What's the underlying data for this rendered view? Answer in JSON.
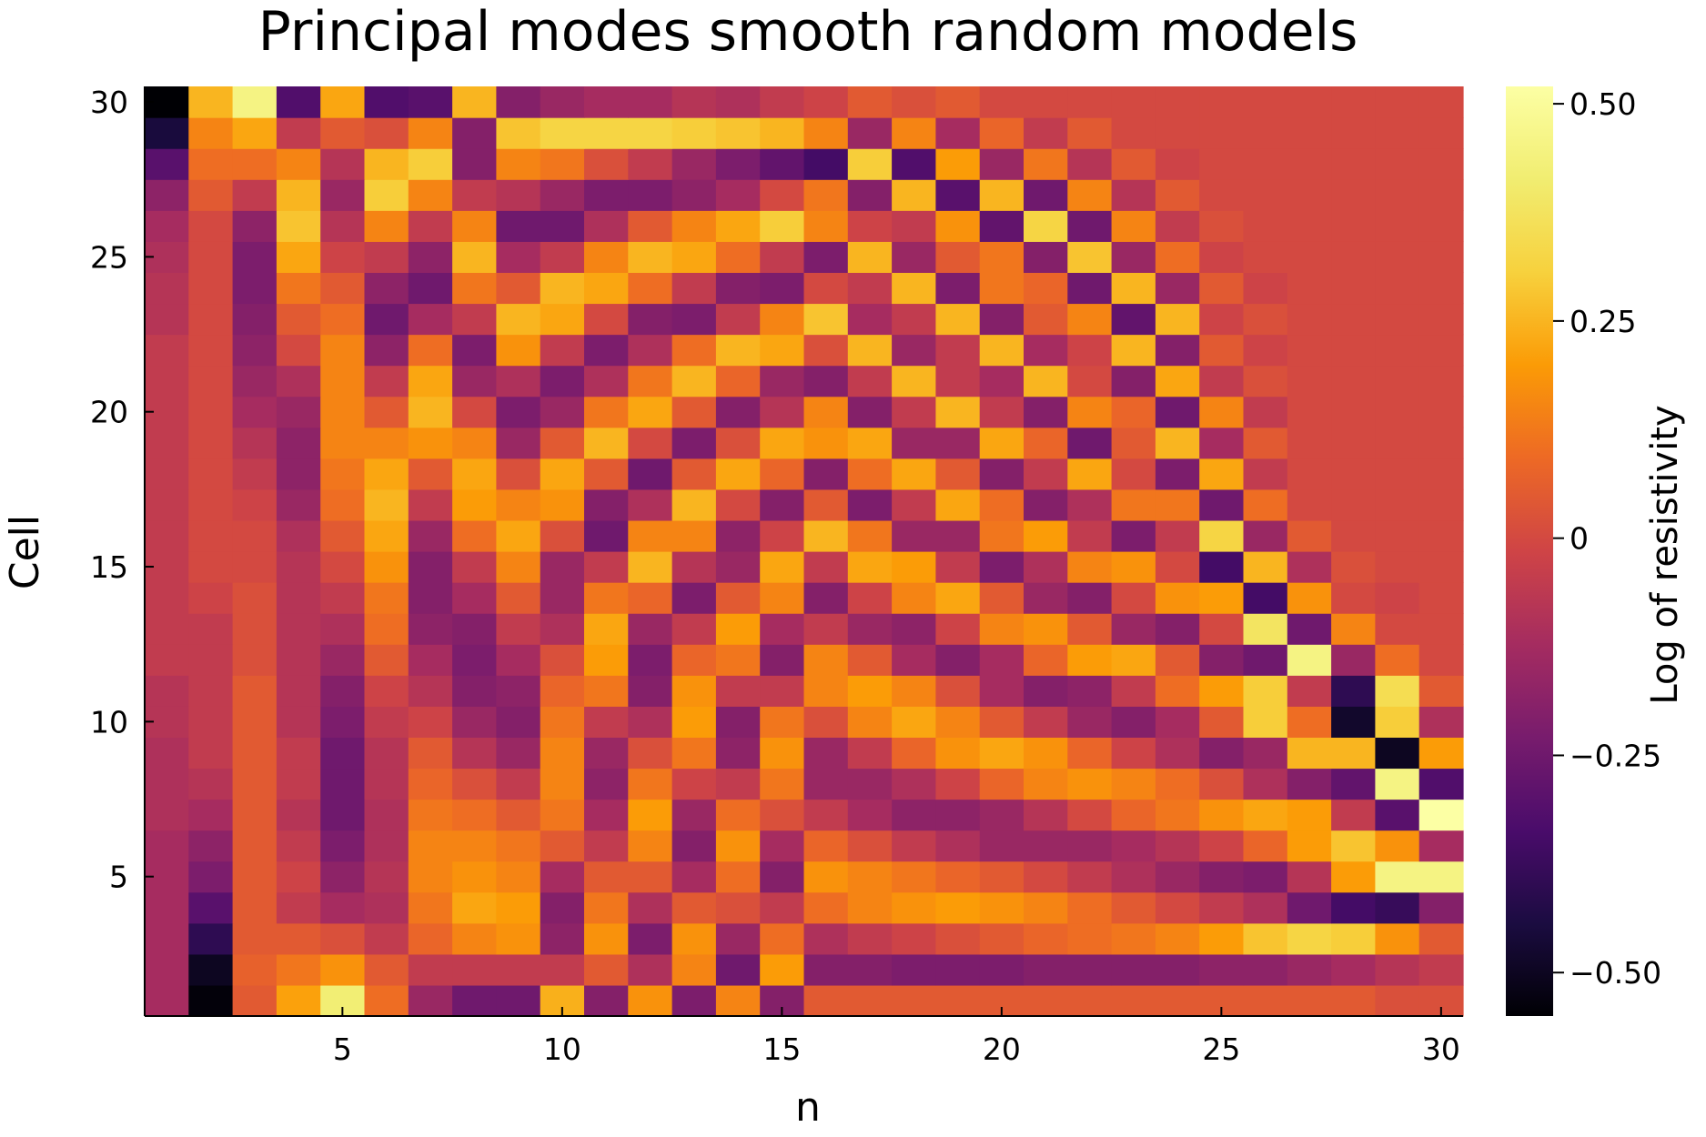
{
  "chart_data": {
    "type": "heatmap",
    "title": "Principal modes smooth random models",
    "xlabel": "n",
    "ylabel": "Cell",
    "colorbar_label": "Log of resistivity",
    "colormap": "inferno",
    "clim": [
      -0.55,
      0.52
    ],
    "xlim": [
      0.5,
      30.5
    ],
    "ylim": [
      0.5,
      30.5
    ],
    "x_ticks": [
      5,
      10,
      15,
      20,
      25,
      30
    ],
    "y_ticks": [
      5,
      10,
      15,
      20,
      25,
      30
    ],
    "colorbar_ticks": [
      {
        "value": 0.5,
        "label": "0.50"
      },
      {
        "value": 0.25,
        "label": "0.25"
      },
      {
        "value": 0.0,
        "label": "0"
      },
      {
        "value": -0.25,
        "label": "−0.25"
      },
      {
        "value": -0.5,
        "label": "−0.50"
      }
    ],
    "rows": 30,
    "cols": 30,
    "z_note": "Principal modes: column n is the n-th mode evaluated over 30 cells (row 1 at bottom).",
    "z": [
      [
        -0.12,
        -0.54,
        0.05,
        0.21,
        0.42,
        0.1,
        -0.15,
        -0.25,
        -0.25,
        0.24,
        -0.2,
        0.18,
        -0.22,
        0.15,
        -0.2,
        0.05,
        0.05,
        0.05,
        0.05,
        0.05,
        0.05,
        0.05,
        0.05,
        0.05,
        0.05,
        0.05,
        0.05,
        0.05,
        0.02,
        0.02
      ],
      [
        -0.12,
        -0.5,
        0.07,
        0.12,
        0.18,
        0.05,
        -0.05,
        -0.05,
        -0.05,
        -0.05,
        0.05,
        -0.1,
        0.15,
        -0.25,
        0.2,
        -0.2,
        -0.2,
        -0.22,
        -0.22,
        -0.22,
        -0.2,
        -0.2,
        -0.2,
        -0.2,
        -0.18,
        -0.18,
        -0.15,
        -0.12,
        -0.08,
        -0.05
      ],
      [
        -0.12,
        -0.4,
        0.05,
        0.05,
        0.02,
        -0.05,
        0.08,
        0.15,
        0.18,
        -0.18,
        0.18,
        -0.22,
        0.18,
        -0.15,
        0.1,
        -0.1,
        -0.05,
        -0.02,
        0.02,
        0.05,
        0.08,
        0.1,
        0.12,
        0.15,
        0.2,
        0.28,
        0.32,
        0.3,
        0.18,
        0.05
      ],
      [
        -0.12,
        -0.3,
        0.05,
        -0.05,
        -0.12,
        -0.1,
        0.12,
        0.22,
        0.2,
        -0.2,
        0.12,
        -0.1,
        0.05,
        0.02,
        -0.05,
        0.1,
        0.15,
        0.18,
        0.2,
        0.18,
        0.15,
        0.1,
        0.05,
        0.0,
        -0.05,
        -0.1,
        -0.25,
        -0.35,
        -0.38,
        -0.2
      ],
      [
        -0.12,
        -0.22,
        0.05,
        -0.02,
        -0.18,
        -0.08,
        0.15,
        0.18,
        0.15,
        -0.12,
        0.05,
        0.05,
        -0.12,
        0.1,
        -0.2,
        0.18,
        0.15,
        0.12,
        0.08,
        0.05,
        0.0,
        -0.05,
        -0.1,
        -0.15,
        -0.2,
        -0.22,
        -0.08,
        0.2,
        0.45,
        0.45
      ],
      [
        -0.12,
        -0.18,
        0.05,
        -0.05,
        -0.22,
        -0.1,
        0.15,
        0.15,
        0.12,
        0.05,
        -0.05,
        0.15,
        -0.2,
        0.18,
        -0.12,
        0.08,
        0.02,
        -0.05,
        -0.1,
        -0.15,
        -0.15,
        -0.15,
        -0.12,
        -0.08,
        -0.02,
        0.08,
        0.2,
        0.28,
        0.18,
        -0.12
      ],
      [
        -0.1,
        -0.12,
        0.05,
        -0.08,
        -0.25,
        -0.1,
        0.12,
        0.1,
        0.05,
        0.12,
        -0.12,
        0.2,
        -0.15,
        0.1,
        0.02,
        -0.05,
        -0.12,
        -0.18,
        -0.18,
        -0.15,
        -0.08,
        0.0,
        0.08,
        0.12,
        0.18,
        0.22,
        0.2,
        -0.05,
        -0.3,
        0.52
      ],
      [
        -0.1,
        -0.08,
        0.05,
        -0.05,
        -0.25,
        -0.08,
        0.08,
        0.02,
        -0.05,
        0.15,
        -0.18,
        0.12,
        -0.02,
        -0.05,
        0.12,
        -0.15,
        -0.15,
        -0.1,
        -0.02,
        0.08,
        0.15,
        0.18,
        0.15,
        0.1,
        0.02,
        -0.1,
        -0.2,
        -0.28,
        0.45,
        -0.32
      ],
      [
        -0.1,
        -0.05,
        0.05,
        -0.05,
        -0.25,
        -0.08,
        0.05,
        -0.08,
        -0.15,
        0.15,
        -0.15,
        0.02,
        0.12,
        -0.18,
        0.18,
        -0.15,
        -0.05,
        0.08,
        0.18,
        0.22,
        0.18,
        0.08,
        -0.02,
        -0.1,
        -0.2,
        -0.15,
        0.25,
        0.25,
        -0.5,
        0.2
      ],
      [
        -0.08,
        -0.05,
        0.05,
        -0.08,
        -0.22,
        -0.05,
        -0.02,
        -0.15,
        -0.2,
        0.12,
        -0.05,
        -0.1,
        0.2,
        -0.2,
        0.12,
        0.02,
        0.15,
        0.22,
        0.15,
        0.05,
        -0.05,
        -0.15,
        -0.2,
        -0.12,
        0.05,
        0.3,
        0.1,
        -0.48,
        0.3,
        -0.1
      ],
      [
        -0.08,
        -0.05,
        0.05,
        -0.08,
        -0.2,
        -0.02,
        -0.08,
        -0.2,
        -0.18,
        0.08,
        0.12,
        -0.2,
        0.18,
        -0.05,
        -0.05,
        0.15,
        0.2,
        0.15,
        0.02,
        -0.12,
        -0.2,
        -0.18,
        -0.05,
        0.1,
        0.2,
        0.3,
        -0.05,
        -0.4,
        0.35,
        0.05
      ],
      [
        -0.05,
        -0.05,
        0.02,
        -0.08,
        -0.15,
        0.05,
        -0.12,
        -0.22,
        -0.12,
        0.02,
        0.2,
        -0.22,
        0.08,
        0.12,
        -0.2,
        0.15,
        0.05,
        -0.12,
        -0.2,
        -0.12,
        0.08,
        0.2,
        0.22,
        0.05,
        -0.2,
        -0.25,
        0.45,
        -0.15,
        0.1,
        0.0
      ],
      [
        -0.05,
        -0.05,
        0.02,
        -0.08,
        -0.1,
        0.1,
        -0.18,
        -0.2,
        -0.05,
        -0.1,
        0.22,
        -0.15,
        -0.05,
        0.2,
        -0.12,
        -0.05,
        -0.15,
        -0.18,
        -0.02,
        0.15,
        0.18,
        0.05,
        -0.15,
        -0.2,
        0.0,
        0.38,
        -0.25,
        0.15,
        0.0,
        0.0
      ],
      [
        -0.05,
        -0.02,
        0.02,
        -0.08,
        -0.05,
        0.12,
        -0.2,
        -0.12,
        0.05,
        -0.15,
        0.12,
        0.08,
        -0.22,
        0.05,
        0.15,
        -0.2,
        -0.02,
        0.15,
        0.22,
        0.05,
        -0.15,
        -0.2,
        0.0,
        0.18,
        0.2,
        -0.35,
        0.18,
        0.0,
        -0.02,
        0.0
      ],
      [
        -0.05,
        0.0,
        0.0,
        -0.08,
        0.0,
        0.18,
        -0.2,
        -0.05,
        0.15,
        -0.15,
        -0.05,
        0.25,
        -0.08,
        -0.15,
        0.22,
        -0.05,
        0.22,
        0.2,
        -0.05,
        -0.22,
        -0.1,
        0.15,
        0.18,
        0.0,
        -0.35,
        0.25,
        -0.1,
        0.02,
        0.0,
        0.0
      ],
      [
        -0.05,
        0.0,
        0.0,
        -0.1,
        0.05,
        0.22,
        -0.15,
        0.1,
        0.22,
        0.02,
        -0.25,
        0.15,
        0.15,
        -0.18,
        -0.02,
        0.25,
        0.12,
        -0.15,
        -0.15,
        0.12,
        0.2,
        -0.05,
        -0.22,
        -0.05,
        0.32,
        -0.15,
        0.05,
        0.0,
        0.0,
        0.0
      ],
      [
        -0.05,
        0.0,
        -0.02,
        -0.15,
        0.1,
        0.25,
        -0.05,
        0.2,
        0.15,
        0.18,
        -0.2,
        -0.1,
        0.25,
        0.0,
        -0.2,
        0.05,
        -0.22,
        -0.05,
        0.22,
        0.1,
        -0.2,
        -0.1,
        0.12,
        0.12,
        -0.25,
        0.1,
        0.0,
        0.0,
        0.0,
        0.0
      ],
      [
        -0.05,
        0.0,
        -0.05,
        -0.18,
        0.12,
        0.22,
        0.05,
        0.22,
        0.02,
        0.22,
        0.05,
        -0.25,
        0.05,
        0.22,
        0.08,
        -0.2,
        0.1,
        0.22,
        0.05,
        -0.2,
        -0.05,
        0.22,
        0.0,
        -0.22,
        0.22,
        -0.05,
        0.0,
        0.0,
        0.0,
        0.0
      ],
      [
        -0.05,
        0.0,
        -0.08,
        -0.18,
        0.15,
        0.15,
        0.18,
        0.15,
        -0.15,
        0.05,
        0.25,
        0.0,
        -0.22,
        0.02,
        0.22,
        0.18,
        0.22,
        -0.15,
        -0.15,
        0.22,
        0.08,
        -0.25,
        0.05,
        0.25,
        -0.12,
        0.05,
        0.0,
        0.0,
        0.0,
        0.0
      ],
      [
        -0.05,
        0.0,
        -0.12,
        -0.15,
        0.15,
        0.05,
        0.25,
        0.0,
        -0.22,
        -0.15,
        0.12,
        0.22,
        0.05,
        -0.2,
        -0.08,
        0.15,
        -0.2,
        -0.05,
        0.25,
        -0.05,
        -0.2,
        0.15,
        0.08,
        -0.25,
        0.15,
        -0.05,
        0.0,
        0.0,
        0.0,
        0.0
      ],
      [
        -0.05,
        0.0,
        -0.15,
        -0.1,
        0.15,
        -0.05,
        0.22,
        -0.15,
        -0.1,
        -0.22,
        -0.1,
        0.12,
        0.25,
        0.08,
        -0.15,
        -0.2,
        -0.05,
        0.25,
        -0.05,
        -0.12,
        0.25,
        0.0,
        -0.2,
        0.22,
        -0.05,
        0.02,
        0.0,
        0.0,
        0.0,
        0.0
      ],
      [
        -0.05,
        0.0,
        -0.18,
        0.0,
        0.15,
        -0.18,
        0.1,
        -0.22,
        0.18,
        -0.05,
        -0.22,
        -0.1,
        0.1,
        0.25,
        0.22,
        0.02,
        0.25,
        -0.15,
        -0.05,
        0.25,
        -0.12,
        -0.02,
        0.25,
        -0.2,
        0.05,
        -0.02,
        0.0,
        0.0,
        0.0,
        0.0
      ],
      [
        -0.08,
        0.0,
        -0.2,
        0.05,
        0.1,
        -0.25,
        -0.12,
        -0.05,
        0.25,
        0.22,
        0.0,
        -0.2,
        -0.22,
        -0.05,
        0.15,
        0.28,
        -0.12,
        -0.05,
        0.25,
        -0.2,
        0.05,
        0.15,
        -0.28,
        0.25,
        -0.02,
        0.02,
        0.0,
        0.0,
        0.0,
        0.0
      ],
      [
        -0.08,
        0.0,
        -0.22,
        0.12,
        0.05,
        -0.18,
        -0.25,
        0.12,
        0.05,
        0.25,
        0.22,
        0.1,
        -0.05,
        -0.2,
        -0.22,
        0.0,
        -0.05,
        0.25,
        -0.22,
        0.12,
        0.08,
        -0.25,
        0.25,
        -0.15,
        0.05,
        -0.02,
        0.0,
        0.0,
        0.0,
        0.0
      ],
      [
        -0.1,
        0.0,
        -0.22,
        0.22,
        -0.02,
        -0.05,
        -0.18,
        0.25,
        -0.12,
        -0.05,
        0.15,
        0.25,
        0.22,
        0.1,
        -0.05,
        -0.22,
        0.25,
        -0.15,
        0.05,
        0.12,
        -0.2,
        0.28,
        -0.15,
        0.1,
        -0.02,
        0.0,
        0.0,
        0.0,
        0.0,
        0.0
      ],
      [
        -0.12,
        0.0,
        -0.18,
        0.28,
        -0.08,
        0.15,
        -0.05,
        0.15,
        -0.25,
        -0.25,
        -0.1,
        0.05,
        0.15,
        0.22,
        0.3,
        0.15,
        -0.02,
        -0.05,
        0.18,
        -0.28,
        0.32,
        -0.25,
        0.15,
        -0.05,
        0.02,
        0.0,
        0.0,
        0.0,
        0.0,
        0.0
      ],
      [
        -0.18,
        0.05,
        -0.05,
        0.25,
        -0.15,
        0.3,
        0.15,
        -0.05,
        -0.08,
        -0.15,
        -0.22,
        -0.22,
        -0.18,
        -0.12,
        0.0,
        0.12,
        -0.2,
        0.25,
        -0.3,
        0.25,
        -0.25,
        0.15,
        -0.08,
        0.05,
        0.0,
        0.0,
        0.0,
        0.0,
        0.0,
        0.0
      ],
      [
        -0.3,
        0.1,
        0.1,
        0.15,
        -0.08,
        0.25,
        0.3,
        -0.2,
        0.15,
        0.12,
        0.02,
        -0.05,
        -0.15,
        -0.22,
        -0.28,
        -0.35,
        0.3,
        -0.32,
        0.2,
        -0.15,
        0.12,
        -0.08,
        0.05,
        -0.02,
        0.0,
        0.0,
        0.0,
        0.0,
        0.0,
        0.0
      ],
      [
        -0.45,
        0.15,
        0.22,
        -0.05,
        0.05,
        0.02,
        0.15,
        -0.2,
        0.28,
        0.32,
        0.32,
        0.32,
        0.3,
        0.28,
        0.25,
        0.15,
        -0.15,
        0.15,
        -0.12,
        0.08,
        -0.05,
        0.05,
        0.0,
        0.0,
        0.0,
        0.0,
        0.0,
        0.0,
        0.0,
        0.0
      ],
      [
        -0.55,
        0.25,
        0.45,
        -0.32,
        0.22,
        -0.32,
        -0.3,
        0.25,
        -0.2,
        -0.15,
        -0.12,
        -0.12,
        -0.08,
        -0.1,
        -0.05,
        -0.02,
        0.05,
        0.02,
        0.05,
        0.0,
        0.0,
        0.0,
        0.0,
        0.0,
        0.0,
        0.0,
        0.0,
        0.0,
        0.0,
        0.0
      ]
    ]
  }
}
